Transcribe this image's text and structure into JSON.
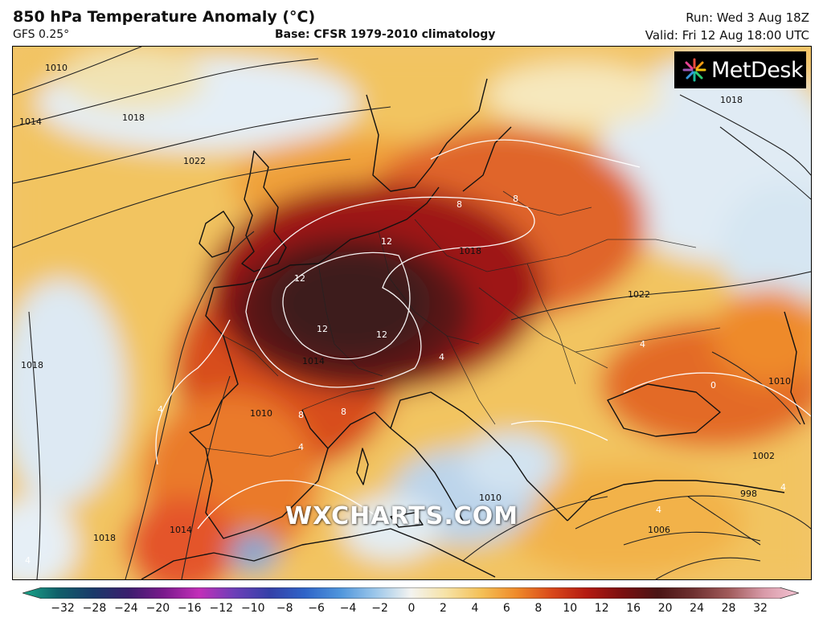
{
  "header": {
    "title": "850 hPa Temperature Anomaly (°C)",
    "subtitle": "GFS 0.25°",
    "base": "Base: CFSR 1979-2010 climatology",
    "run": "Run: Wed 3 Aug 18Z",
    "valid": "Valid: Fri 12 Aug 18:00 UTC"
  },
  "logo": {
    "text": "MetDesk",
    "icon": "metdesk-starburst-icon"
  },
  "watermark": "WXCHARTS.COM",
  "isobar_labels": [
    "1010",
    "1014",
    "1018",
    "1022",
    "1018",
    "1022",
    "1018",
    "1014",
    "1018",
    "1010",
    "1010",
    "1002",
    "998",
    "1006",
    "1010",
    "1018",
    "1014"
  ],
  "anomaly_labels": [
    "12",
    "12",
    "12",
    "12",
    "8",
    "8",
    "8",
    "8",
    "4",
    "4",
    "4",
    "4",
    "4",
    "0",
    "4",
    "4"
  ],
  "colorbar": {
    "ticks": [
      "−32",
      "−28",
      "−24",
      "−20",
      "−16",
      "−12",
      "−10",
      "−8",
      "−6",
      "−4",
      "−2",
      "0",
      "2",
      "4",
      "6",
      "8",
      "10",
      "12",
      "16",
      "20",
      "24",
      "28",
      "32"
    ],
    "colors": [
      "#1aa88a",
      "#10606a",
      "#1a3a6a",
      "#3b1e6e",
      "#7a1a8c",
      "#c22fb8",
      "#6c3fb8",
      "#3540a8",
      "#2f64c8",
      "#4f95dc",
      "#9cc7ea",
      "#f3f3f0",
      "#f6e2a6",
      "#f4c056",
      "#ef8a2a",
      "#d9481a",
      "#b31a12",
      "#7a0f10",
      "#4a1414",
      "#6e3030",
      "#a05a5a",
      "#d89aa8",
      "#f4c4d4"
    ]
  }
}
